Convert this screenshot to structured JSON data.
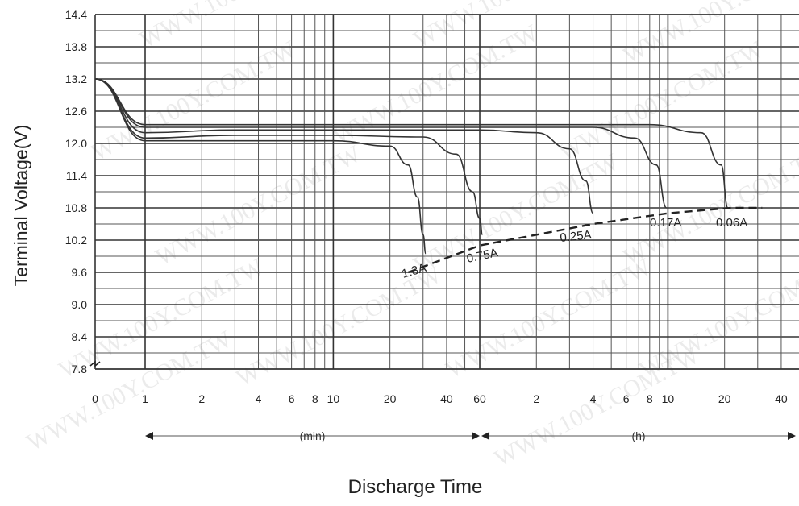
{
  "chart_data": {
    "type": "line",
    "title": "",
    "ylabel": "Terminal Voltage(V)",
    "xlabel": "Discharge Time",
    "ylim": [
      7.8,
      14.4
    ],
    "y_scale_break_below": 7.8,
    "x_scale": "log",
    "x_unit_segments": [
      {
        "label": "(min)",
        "from": "1 min",
        "to": "60 min"
      },
      {
        "label": "(h)",
        "from": "1 h",
        "to": "40 h"
      }
    ],
    "y_ticks": [
      "14.4",
      "13.8",
      "13.2",
      "12.6",
      "12.0",
      "11.4",
      "10.8",
      "10.2",
      "9.6",
      "9.0",
      "8.4",
      "7.8"
    ],
    "x_ticks": [
      "0",
      "1",
      "2",
      "4",
      "6",
      "8",
      "10",
      "20",
      "40",
      "60",
      "2",
      "4",
      "6",
      "8",
      "10",
      "20",
      "40"
    ],
    "grid": true,
    "x_unit": "minutes",
    "series": [
      {
        "name": "1.3A",
        "x": [
          0,
          1,
          3,
          10,
          20,
          25,
          28,
          30,
          31
        ],
        "y": [
          13.2,
          12.05,
          12.05,
          12.05,
          11.95,
          11.6,
          11.0,
          10.3,
          9.95
        ]
      },
      {
        "name": "0.75A",
        "x": [
          0,
          1,
          3,
          10,
          30,
          45,
          55,
          60,
          62
        ],
        "y": [
          13.2,
          12.1,
          12.15,
          12.15,
          12.12,
          11.8,
          11.1,
          10.6,
          10.3
        ]
      },
      {
        "name": "0.25A",
        "x": [
          0,
          1,
          3,
          10,
          60,
          120,
          180,
          220,
          240
        ],
        "y": [
          13.2,
          12.2,
          12.25,
          12.25,
          12.25,
          12.2,
          11.9,
          11.3,
          10.7
        ]
      },
      {
        "name": "0.17A",
        "x": [
          0,
          1,
          3,
          10,
          60,
          240,
          400,
          520,
          590
        ],
        "y": [
          13.2,
          12.3,
          12.3,
          12.3,
          12.3,
          12.3,
          12.1,
          11.6,
          10.8
        ]
      },
      {
        "name": "0.06A",
        "x": [
          0,
          1,
          3,
          10,
          60,
          480,
          900,
          1150,
          1250
        ],
        "y": [
          13.2,
          12.35,
          12.35,
          12.35,
          12.35,
          12.35,
          12.2,
          11.6,
          10.8
        ]
      }
    ],
    "cutoff_voltage": {
      "x": [
        25,
        60,
        240,
        600,
        1300,
        1900
      ],
      "y": [
        9.6,
        10.1,
        10.5,
        10.7,
        10.8,
        10.8
      ]
    }
  },
  "watermark": "WWW.100Y.COM.TW"
}
